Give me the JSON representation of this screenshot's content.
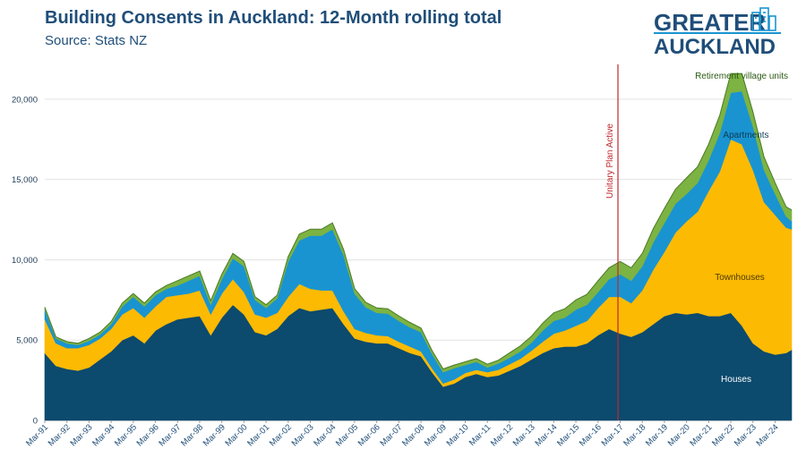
{
  "title": "Building Consents in Auckland: 12-Month rolling total",
  "subtitle": "Source: Stats NZ",
  "logo": {
    "line1": "GREATER",
    "line2": "AUCKLAND"
  },
  "chart_data": {
    "type": "area",
    "stacked": true,
    "title": "Building Consents in Auckland: 12-Month rolling total",
    "subtitle": "Source: Stats NZ",
    "xlabel": "",
    "ylabel": "",
    "ylim": [
      0,
      22000
    ],
    "yticks": [
      0,
      5000,
      10000,
      15000,
      20000
    ],
    "ytick_labels": [
      "0",
      "5,000",
      "10,000",
      "15,000",
      "20,000"
    ],
    "grid": true,
    "x_range": [
      1991.0,
      2024.75
    ],
    "xtick_labels": [
      "Mar-91",
      "Mar-92",
      "Mar-93",
      "Mar-94",
      "Mar-95",
      "Mar-96",
      "Mar-97",
      "Mar-98",
      "Mar-99",
      "Mar-00",
      "Mar-01",
      "Mar-02",
      "Mar-03",
      "Mar-04",
      "Mar-05",
      "Mar-06",
      "Mar-07",
      "Mar-08",
      "Mar-09",
      "Mar-10",
      "Mar-11",
      "Mar-12",
      "Mar-13",
      "Mar-14",
      "Mar-15",
      "Mar-16",
      "Mar-17",
      "Mar-18",
      "Mar-19",
      "Mar-20",
      "Mar-21",
      "Mar-22",
      "Mar-23",
      "Mar-24"
    ],
    "annotation": {
      "label": "Unitary Plan Active",
      "x": 2016.9,
      "color": "#c0272d"
    },
    "x": [
      1991.0,
      1991.5,
      1992.0,
      1992.5,
      1993.0,
      1993.5,
      1994.0,
      1994.5,
      1995.0,
      1995.5,
      1996.0,
      1996.5,
      1997.0,
      1997.5,
      1998.0,
      1998.5,
      1999.0,
      1999.5,
      2000.0,
      2000.5,
      2001.0,
      2001.5,
      2002.0,
      2002.5,
      2003.0,
      2003.5,
      2004.0,
      2004.5,
      2005.0,
      2005.5,
      2006.0,
      2006.5,
      2007.0,
      2007.5,
      2008.0,
      2008.5,
      2009.0,
      2009.5,
      2010.0,
      2010.5,
      2011.0,
      2011.5,
      2012.0,
      2012.5,
      2013.0,
      2013.5,
      2014.0,
      2014.5,
      2015.0,
      2015.5,
      2016.0,
      2016.5,
      2017.0,
      2017.5,
      2018.0,
      2018.5,
      2019.0,
      2019.5,
      2020.0,
      2020.5,
      2021.0,
      2021.5,
      2022.0,
      2022.5,
      2023.0,
      2023.5,
      2024.0,
      2024.5,
      2024.75
    ],
    "series": [
      {
        "name": "Houses",
        "color": "#0c4a6e",
        "values": [
          4200,
          3400,
          3200,
          3100,
          3300,
          3800,
          4300,
          5000,
          5300,
          4800,
          5600,
          6000,
          6300,
          6400,
          6500,
          5300,
          6400,
          7200,
          6600,
          5500,
          5300,
          5700,
          6500,
          7000,
          6800,
          6900,
          7000,
          6000,
          5100,
          4900,
          4800,
          4800,
          4500,
          4200,
          4000,
          3000,
          2100,
          2300,
          2700,
          2900,
          2700,
          2800,
          3100,
          3400,
          3800,
          4200,
          4500,
          4600,
          4600,
          4800,
          5300,
          5700,
          5400,
          5200,
          5500,
          6000,
          6500,
          6700,
          6600,
          6700,
          6500,
          6500,
          6700,
          5900,
          4800,
          4300,
          4100,
          4200,
          4400
        ]
      },
      {
        "name": "Townhouses",
        "color": "#fcba03",
        "values": [
          2100,
          1400,
          1300,
          1400,
          1400,
          1300,
          1400,
          1600,
          1700,
          1600,
          1500,
          1700,
          1500,
          1500,
          1600,
          1300,
          1500,
          1600,
          1400,
          1100,
          1100,
          1000,
          1200,
          1500,
          1400,
          1200,
          1100,
          800,
          600,
          550,
          500,
          450,
          400,
          400,
          300,
          250,
          200,
          250,
          250,
          250,
          300,
          350,
          400,
          450,
          550,
          700,
          900,
          1000,
          1300,
          1400,
          1700,
          2000,
          2300,
          2100,
          2600,
          3400,
          4000,
          5000,
          5800,
          6300,
          7800,
          9000,
          10800,
          11300,
          10800,
          9300,
          8700,
          7800,
          7500
        ]
      },
      {
        "name": "Apartments",
        "color": "#1994d1",
        "values": [
          600,
          300,
          300,
          200,
          250,
          250,
          300,
          500,
          700,
          700,
          700,
          500,
          600,
          800,
          900,
          600,
          900,
          1300,
          1600,
          900,
          600,
          900,
          2200,
          2700,
          3300,
          3400,
          3800,
          3500,
          2200,
          1600,
          1400,
          1400,
          1300,
          1200,
          1200,
          900,
          700,
          700,
          500,
          500,
          300,
          400,
          400,
          450,
          500,
          700,
          800,
          800,
          1000,
          1000,
          1000,
          1100,
          1400,
          1400,
          1500,
          1700,
          1800,
          1800,
          1700,
          1800,
          1900,
          2400,
          2900,
          3300,
          2700,
          2000,
          1300,
          700,
          500
        ]
      },
      {
        "name": "Retirement village units",
        "color": "#7cb342",
        "values": [
          150,
          100,
          100,
          100,
          150,
          150,
          150,
          200,
          200,
          200,
          200,
          200,
          300,
          300,
          300,
          250,
          300,
          300,
          300,
          200,
          200,
          200,
          300,
          400,
          400,
          400,
          400,
          350,
          300,
          300,
          300,
          300,
          300,
          300,
          250,
          200,
          200,
          200,
          200,
          200,
          200,
          200,
          300,
          350,
          400,
          450,
          500,
          550,
          600,
          650,
          700,
          700,
          800,
          800,
          800,
          850,
          900,
          900,
          1000,
          1000,
          1000,
          1100,
          1200,
          1100,
          900,
          800,
          700,
          600,
          700
        ]
      }
    ],
    "series_labels": [
      "Houses",
      "Townhouses",
      "Apartments",
      "Retirement village units"
    ]
  }
}
